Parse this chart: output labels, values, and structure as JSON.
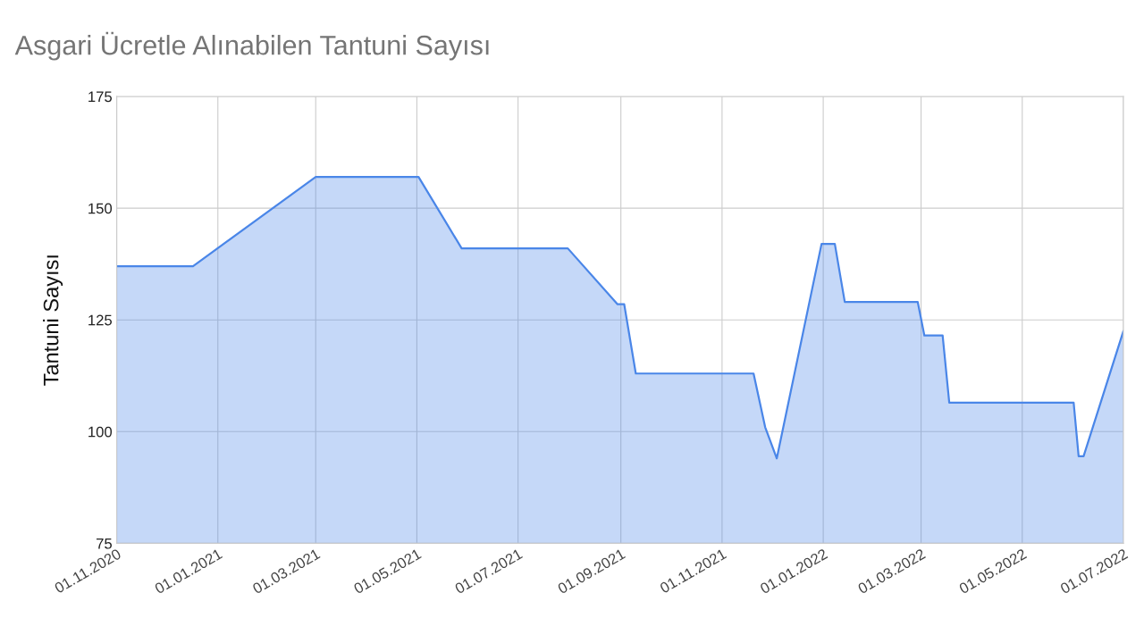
{
  "chart_data": {
    "type": "area",
    "title": "Asgari Ücretle Alınabilen Tantuni Sayısı",
    "ylabel": "Tantuni Sayısı",
    "x": [
      "2020-11-01",
      "2020-12-17",
      "2021-03-01",
      "2021-05-02",
      "2021-05-28",
      "2021-07-31",
      "2021-08-30",
      "2021-09-03",
      "2021-09-10",
      "2021-11-20",
      "2021-11-27",
      "2021-12-04",
      "2021-12-31",
      "2022-01-08",
      "2022-01-14",
      "2022-02-27",
      "2022-03-03",
      "2022-03-14",
      "2022-03-18",
      "2022-06-01",
      "2022-06-04",
      "2022-06-07",
      "2022-07-01"
    ],
    "series": [
      {
        "color": "#4a86e8",
        "values": [
          137,
          137,
          157,
          157,
          141,
          141,
          128.5,
          128.5,
          113,
          113,
          101,
          94,
          142,
          142,
          129,
          129,
          121.5,
          121.5,
          106.5,
          106.5,
          94.5,
          94.5,
          122.5
        ]
      }
    ],
    "ylim": [
      75,
      175
    ],
    "yticks": [
      75,
      100,
      125,
      150,
      175
    ],
    "xlim": [
      "2020-11-01",
      "2022-07-01"
    ],
    "xticks": [
      {
        "value": "2020-11-01",
        "label": "01.11.2020"
      },
      {
        "value": "2021-01-01",
        "label": "01.01.2021"
      },
      {
        "value": "2021-03-01",
        "label": "01.03.2021"
      },
      {
        "value": "2021-05-01",
        "label": "01.05.2021"
      },
      {
        "value": "2021-07-01",
        "label": "01.07.2021"
      },
      {
        "value": "2021-09-01",
        "label": "01.09.2021"
      },
      {
        "value": "2021-11-01",
        "label": "01.11.2021"
      },
      {
        "value": "2022-01-01",
        "label": "01.01.2022"
      },
      {
        "value": "2022-03-01",
        "label": "01.03.2022"
      },
      {
        "value": "2022-05-01",
        "label": "01.05.2022"
      },
      {
        "value": "2022-07-01",
        "label": "01.07.2022"
      }
    ],
    "grid": true
  }
}
